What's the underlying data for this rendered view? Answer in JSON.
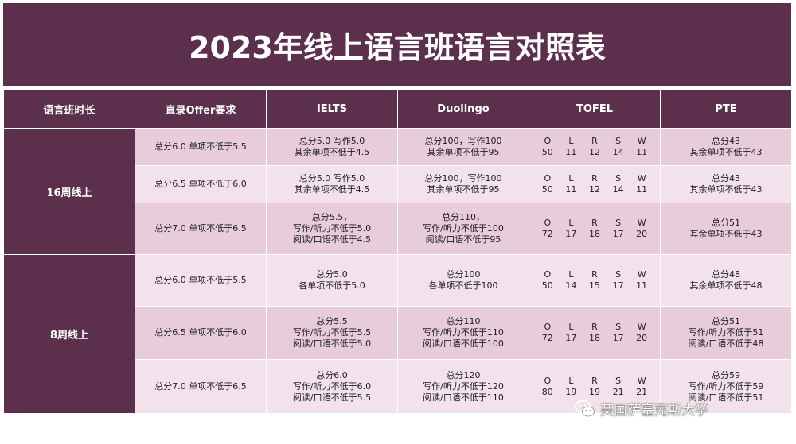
{
  "title": "2023年线上语言班语言对照表",
  "headers": {
    "duration": "语言班时长",
    "direct": "直录Offer要求",
    "ielts": "IELTS",
    "duolingo": "Duolingo",
    "toefl": "TOFEL",
    "pte": "PTE"
  },
  "groups": [
    {
      "duration": "16周线上"
    },
    {
      "duration": "8周线上"
    }
  ],
  "rows": [
    {
      "direct": "总分6.0 单项不低于5.5",
      "ielts": [
        "总分5.0 写作5.0",
        "其余单项不低于4.5"
      ],
      "duolingo": [
        "总分100，写作100",
        "其余单项不低于95"
      ],
      "toefl": {
        "O": "50",
        "L": "11",
        "R": "12",
        "S": "14",
        "W": "11"
      },
      "pte": [
        "总分43",
        "其余单项不低于43"
      ]
    },
    {
      "direct": "总分6.5 单项不低于6.0",
      "ielts": [
        "总分5.0 写作5.0",
        "其余单项不低于4.5"
      ],
      "duolingo": [
        "总分100，写作100",
        "其余单项不低于95"
      ],
      "toefl": {
        "O": "50",
        "L": "11",
        "R": "12",
        "S": "14",
        "W": "11"
      },
      "pte": [
        "总分43",
        "其余单项不低于43"
      ]
    },
    {
      "direct": "总分7.0 单项不低于6.5",
      "ielts": [
        "总分5.5，",
        "写作/听力不低于5.0",
        "阅读/口语不低于4.5"
      ],
      "duolingo": [
        "总分110，",
        "写作/听力不低于100",
        "阅读/口语不低于95"
      ],
      "toefl": {
        "O": "72",
        "L": "17",
        "R": "18",
        "S": "17",
        "W": "20"
      },
      "pte": [
        "总分51",
        "其余单项不低于43"
      ]
    },
    {
      "direct": "总分6.0 单项不低于5.5",
      "ielts": [
        "总分5.0",
        "各单项不低于5.0"
      ],
      "duolingo": [
        "总分100",
        "各单项不低于100"
      ],
      "toefl": {
        "O": "50",
        "L": "14",
        "R": "15",
        "S": "17",
        "W": "11"
      },
      "pte": [
        "总分48",
        "其余单项不低于48"
      ]
    },
    {
      "direct": "总分6.5 单项不低于6.0",
      "ielts": [
        "总分5.5",
        "写作/听力不低于5.5",
        "阅读/口语不低于5.0"
      ],
      "duolingo": [
        "总分110",
        "写作/听力不低于110",
        "阅读/口语不低于100"
      ],
      "toefl": {
        "O": "72",
        "L": "17",
        "R": "18",
        "S": "17",
        "W": "20"
      },
      "pte": [
        "总分51",
        "写作/听力不低于51",
        "阅读/口语不低于48"
      ]
    },
    {
      "direct": "总分7.0 单项不低于6.5",
      "ielts": [
        "总分6.0",
        "写作/听力不低于6.0",
        "阅读/口语不低于5.5"
      ],
      "duolingo": [
        "总分120",
        "写作/听力不低于120",
        "阅读/口语不低于110"
      ],
      "toefl": {
        "O": "80",
        "L": "19",
        "R": "19",
        "S": "21",
        "W": "21"
      },
      "pte": [
        "总分59",
        "写作/听力不低于59",
        "阅读/口语不低于51"
      ]
    }
  ],
  "toefl_keys": [
    "O",
    "L",
    "R",
    "S",
    "W"
  ],
  "watermark": {
    "text": "英国萨塞克斯大学",
    "icon": "wechat-icon"
  },
  "colors": {
    "header_bg": "#5c2f4d",
    "row_dark": "#e9ccdc",
    "row_light": "#f3e2ec",
    "header_text": "#ffffff"
  }
}
